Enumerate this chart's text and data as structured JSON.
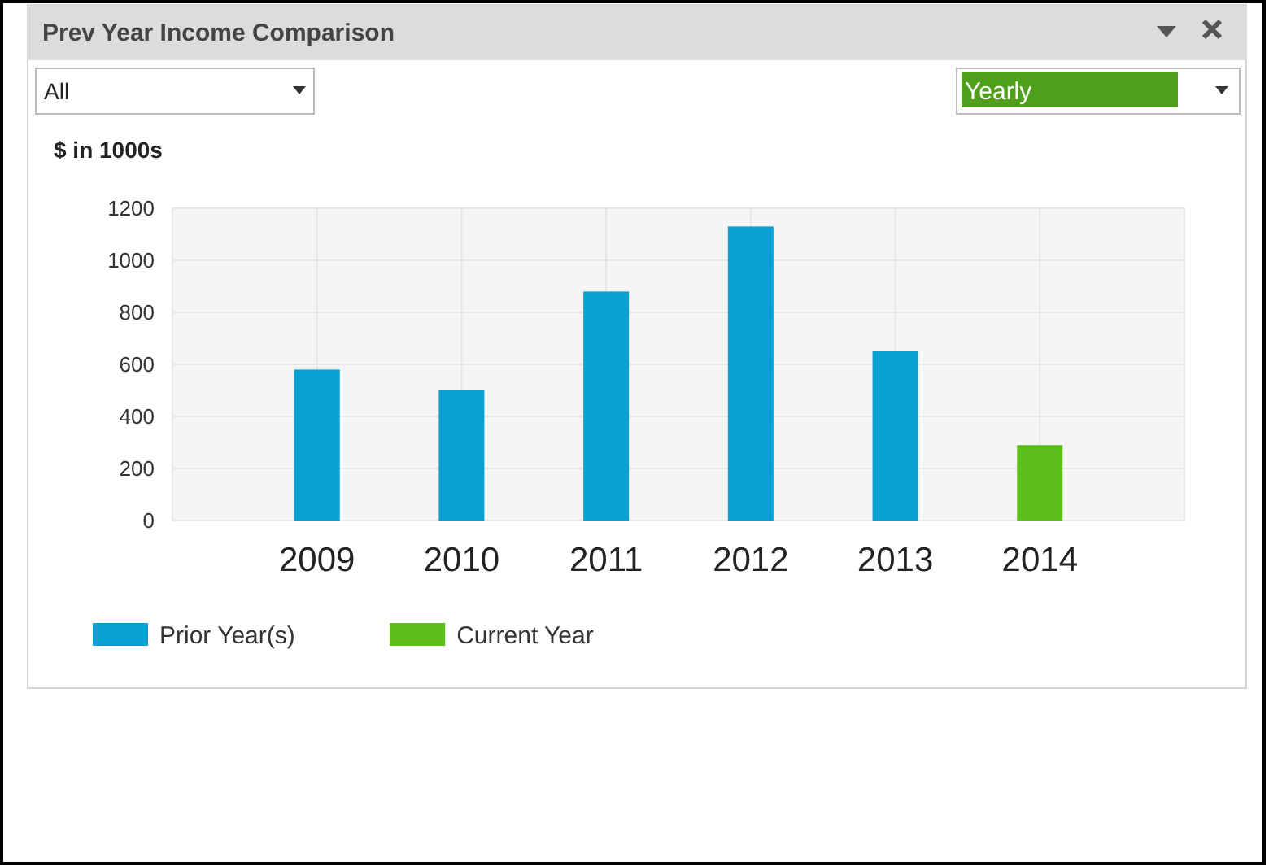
{
  "chart_data": {
    "type": "bar",
    "title": "Prev Year Income Comparison",
    "ylabel": "$ in 1000s",
    "annotations": [
      "All",
      "Yearly"
    ],
    "categories": [
      "2009",
      "2010",
      "2011",
      "2012",
      "2013",
      "2014"
    ],
    "series": [
      {
        "name": "Prior Year(s)",
        "color": "#0ba0d4",
        "values": [
          580,
          500,
          880,
          1130,
          650,
          null
        ]
      },
      {
        "name": "Current Year",
        "color": "#5cbf1a",
        "values": [
          null,
          null,
          null,
          null,
          null,
          290
        ]
      }
    ],
    "stacked": true,
    "ylim": [
      0,
      1200
    ],
    "yticks": [
      0,
      200,
      400,
      600,
      800,
      1000,
      1200
    ],
    "grid": true,
    "legend": "bottom left"
  }
}
